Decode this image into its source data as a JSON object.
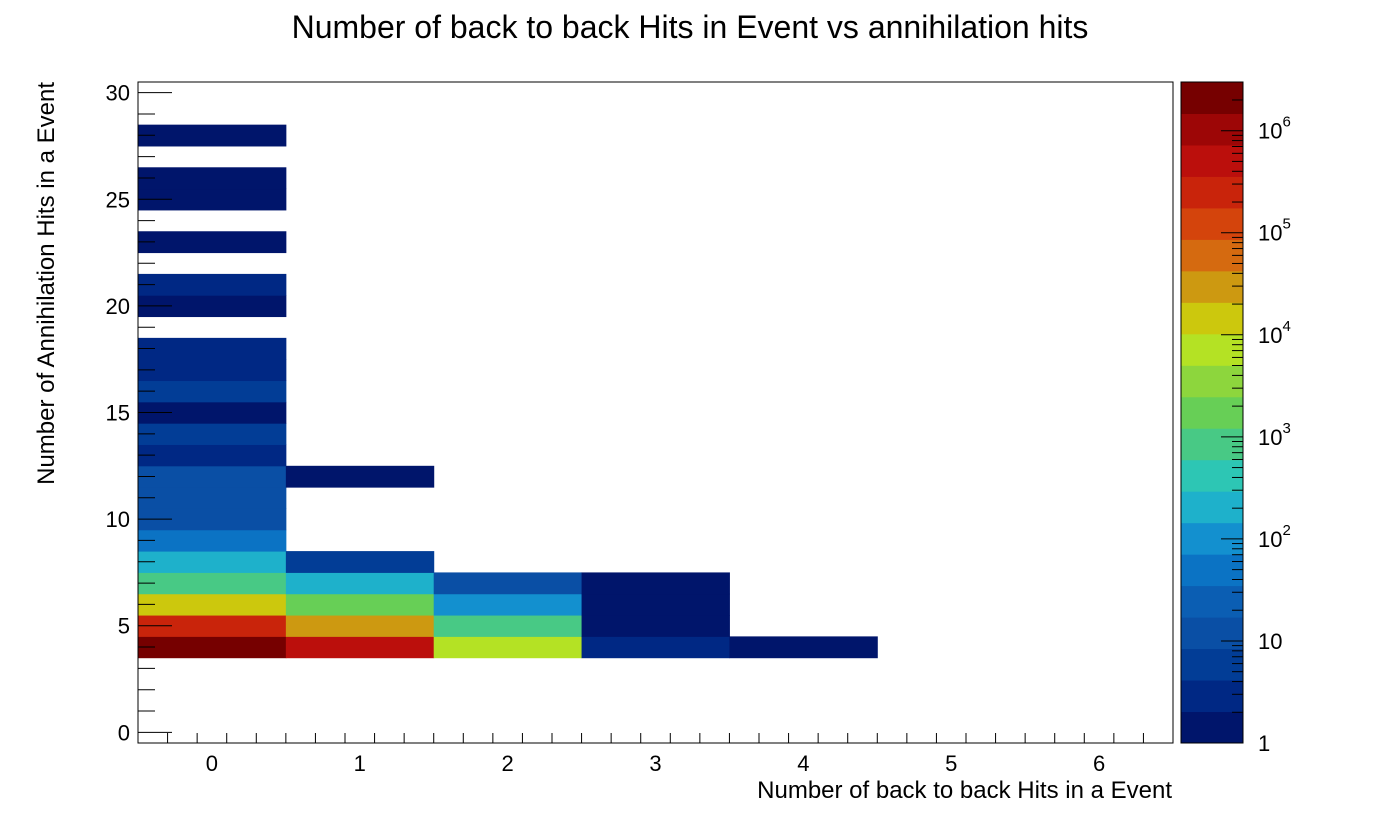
{
  "chart_data": {
    "type": "heatmap",
    "title": "Number of back to back Hits in Event vs annihilation hits",
    "xlabel": "Number of back to back Hits in a Event",
    "ylabel": "Number of Annihilation Hits in a Event",
    "xlim": [
      -0.5,
      6.5
    ],
    "ylim": [
      -0.5,
      30.5
    ],
    "x_ticks": [
      "0",
      "1",
      "2",
      "3",
      "4",
      "5",
      "6"
    ],
    "y_ticks": [
      "0",
      "5",
      "10",
      "15",
      "20",
      "25",
      "30"
    ],
    "z_scale": "log",
    "z_range": [
      1,
      3000000
    ],
    "z_ticks": [
      {
        "base": "1",
        "exp": ""
      },
      {
        "base": "10",
        "exp": ""
      },
      {
        "base": "10",
        "exp": "2"
      },
      {
        "base": "10",
        "exp": "3"
      },
      {
        "base": "10",
        "exp": "4"
      },
      {
        "base": "10",
        "exp": "5"
      },
      {
        "base": "10",
        "exp": "6"
      }
    ],
    "palette": [
      "#00156b",
      "#002884",
      "#023d96",
      "#0a4fa5",
      "#0b5eb3",
      "#0b73c4",
      "#1390cf",
      "#1eb1cb",
      "#2dc6b4",
      "#48c985",
      "#67cf56",
      "#8dd63d",
      "#b4e224",
      "#ccc80d",
      "#cd9911",
      "#d56a10",
      "#d4440c",
      "#c9240b",
      "#bb0f0c",
      "#9d0606",
      "#760000"
    ],
    "cells": [
      {
        "x": 0,
        "y": 4,
        "z": 2500000
      },
      {
        "x": 0,
        "y": 5,
        "z": 180000
      },
      {
        "x": 0,
        "y": 6,
        "z": 15000
      },
      {
        "x": 0,
        "y": 7,
        "z": 1000
      },
      {
        "x": 0,
        "y": 8,
        "z": 150
      },
      {
        "x": 0,
        "y": 9,
        "z": 40
      },
      {
        "x": 0,
        "y": 10,
        "z": 15
      },
      {
        "x": 0,
        "y": 11,
        "z": 15
      },
      {
        "x": 0,
        "y": 12,
        "z": 12
      },
      {
        "x": 0,
        "y": 13,
        "z": 3
      },
      {
        "x": 0,
        "y": 14,
        "z": 6
      },
      {
        "x": 0,
        "y": 15,
        "z": 1
      },
      {
        "x": 0,
        "y": 16,
        "z": 6
      },
      {
        "x": 0,
        "y": 17,
        "z": 3
      },
      {
        "x": 0,
        "y": 18,
        "z": 3
      },
      {
        "x": 0,
        "y": 20,
        "z": 1
      },
      {
        "x": 0,
        "y": 21,
        "z": 3
      },
      {
        "x": 0,
        "y": 23,
        "z": 1
      },
      {
        "x": 0,
        "y": 25,
        "z": 1
      },
      {
        "x": 0,
        "y": 26,
        "z": 1
      },
      {
        "x": 0,
        "y": 28,
        "z": 1
      },
      {
        "x": 1,
        "y": 4,
        "z": 400000
      },
      {
        "x": 1,
        "y": 5,
        "z": 30000
      },
      {
        "x": 1,
        "y": 6,
        "z": 1500
      },
      {
        "x": 1,
        "y": 7,
        "z": 200
      },
      {
        "x": 1,
        "y": 8,
        "z": 6
      },
      {
        "x": 1,
        "y": 12,
        "z": 1
      },
      {
        "x": 2,
        "y": 4,
        "z": 6000
      },
      {
        "x": 2,
        "y": 5,
        "z": 800
      },
      {
        "x": 2,
        "y": 6,
        "z": 100
      },
      {
        "x": 2,
        "y": 7,
        "z": 10
      },
      {
        "x": 3,
        "y": 4,
        "z": 4
      },
      {
        "x": 3,
        "y": 5,
        "z": 1
      },
      {
        "x": 3,
        "y": 6,
        "z": 1
      },
      {
        "x": 3,
        "y": 7,
        "z": 1
      },
      {
        "x": 4,
        "y": 4,
        "z": 1
      }
    ]
  }
}
